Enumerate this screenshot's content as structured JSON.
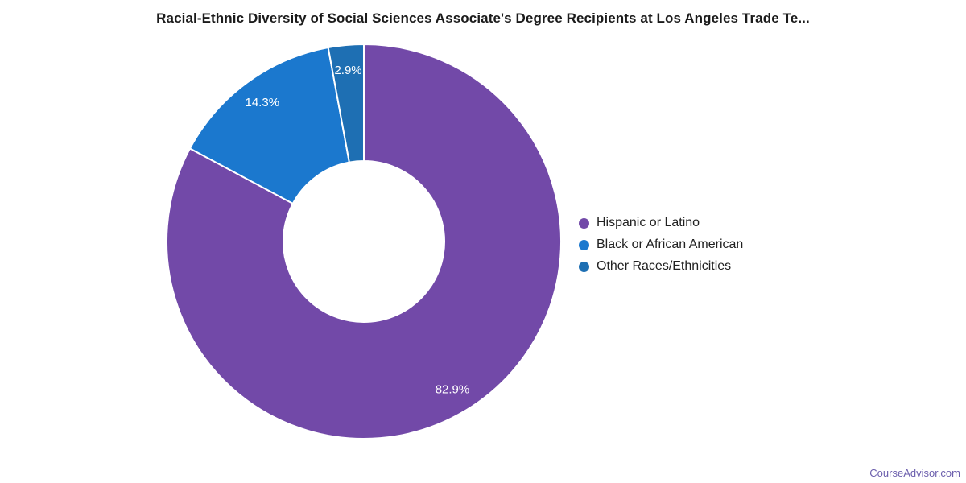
{
  "chart_data": {
    "type": "pie",
    "donut": true,
    "title": "Racial-Ethnic Diversity of Social Sciences Associate's Degree Recipients at Los Angeles Trade Te...",
    "legend_position": "right",
    "grid": false,
    "series": [
      {
        "label": "Hispanic or Latino",
        "value": 82.9,
        "display": "82.9%",
        "color": "#7249A8"
      },
      {
        "label": "Black or African American",
        "value": 14.3,
        "display": "14.3%",
        "color": "#1B78CE"
      },
      {
        "label": "Other Races/Ethnicities",
        "value": 2.9,
        "display": "2.9%",
        "color": "#1E6FB3"
      }
    ],
    "slice_border_color": "#ffffff",
    "label_text_color": "#ffffff"
  },
  "footer": {
    "link_text": "CourseAdvisor.com",
    "link_color": "#6C5FAD"
  }
}
